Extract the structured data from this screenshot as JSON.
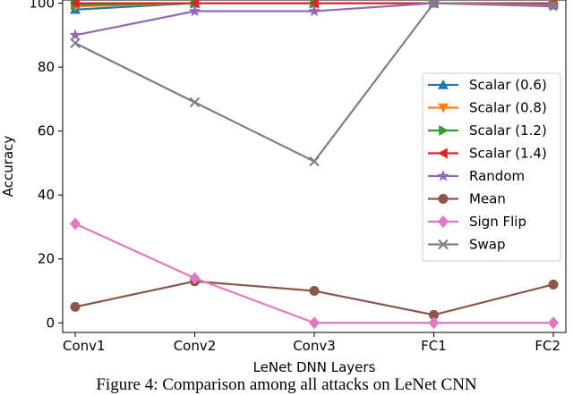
{
  "caption": "Figure 4: Comparison among all attacks on LeNet CNN",
  "chart_data": {
    "type": "line",
    "categories": [
      "Conv1",
      "Conv2",
      "Conv3",
      "FC1",
      "FC2"
    ],
    "xlabel": "LeNet DNN Layers",
    "ylabel": "Accuracy",
    "ylim": [
      -3,
      101
    ],
    "yticks": [
      0,
      20,
      40,
      60,
      80,
      100
    ],
    "grid": false,
    "legend_position": "right",
    "series": [
      {
        "name": "Scalar (0.6)",
        "color": "#1f77b4",
        "marker": "triangle-up",
        "values": [
          98,
          100,
          100,
          100,
          100
        ]
      },
      {
        "name": "Scalar (0.8)",
        "color": "#ff7f0e",
        "marker": "triangle-down",
        "values": [
          99,
          100,
          100,
          100,
          100
        ]
      },
      {
        "name": "Scalar (1.2)",
        "color": "#2ca02c",
        "marker": "triangle-right",
        "values": [
          99.5,
          100,
          100,
          100,
          100
        ]
      },
      {
        "name": "Scalar (1.4)",
        "color": "#d62728",
        "marker": "triangle-left",
        "values": [
          100,
          100,
          100,
          100,
          100
        ]
      },
      {
        "name": "Random",
        "color": "#9467bd",
        "marker": "star",
        "values": [
          90,
          97.5,
          97.5,
          100,
          99
        ]
      },
      {
        "name": "Mean",
        "color": "#8c564b",
        "marker": "circle",
        "values": [
          5,
          13,
          10,
          2.5,
          12
        ]
      },
      {
        "name": "Sign Flip",
        "color": "#e377c2",
        "marker": "diamond",
        "values": [
          31,
          14,
          0,
          0,
          0
        ]
      },
      {
        "name": "Swap",
        "color": "#7f7f7f",
        "marker": "x",
        "values": [
          87.5,
          69,
          50.5,
          100,
          99.5
        ]
      }
    ]
  }
}
